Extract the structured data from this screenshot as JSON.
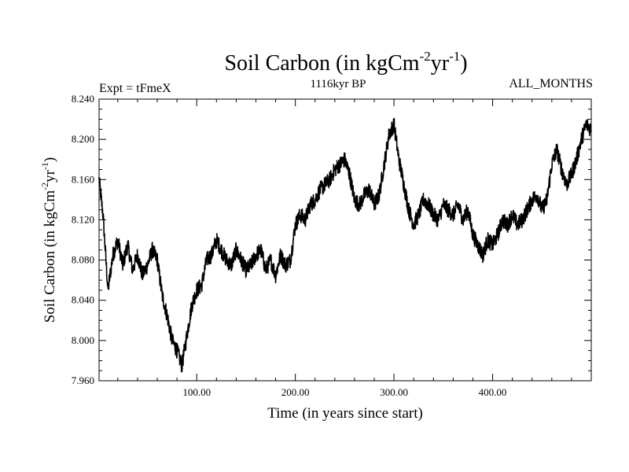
{
  "chart_data": {
    "type": "line",
    "title_main": "Soil Carbon (in kgCm",
    "title_sup1": "-2",
    "title_mid": "yr",
    "title_sup2": "-1",
    "title_end": ")",
    "left_label": "Expt = tFmeX",
    "center_label": "1116kyr BP",
    "right_label": "ALL_MONTHS",
    "xlabel": "Time (in years since start)",
    "ylabel_main": "Soil Carbon (in kgCm",
    "ylabel_sup1": "-2",
    "ylabel_mid": "yr",
    "ylabel_sup2": "-1",
    "ylabel_end": ")",
    "xlim": [
      1,
      500
    ],
    "ylim": [
      7.96,
      8.24
    ],
    "xticks": [
      100,
      200,
      300,
      400
    ],
    "xtick_labels": [
      "100.00",
      "200.00",
      "300.00",
      "400.00"
    ],
    "yticks": [
      7.96,
      8.0,
      8.04,
      8.08,
      8.12,
      8.16,
      8.2,
      8.24
    ],
    "ytick_labels": [
      "7.960",
      "8.000",
      "8.040",
      "8.080",
      "8.120",
      "8.160",
      "8.200",
      "8.240"
    ],
    "line_color": "#000000",
    "series": [
      {
        "name": "Soil Carbon",
        "x": [
          1,
          5,
          10,
          15,
          20,
          25,
          30,
          35,
          40,
          45,
          50,
          55,
          60,
          65,
          70,
          75,
          80,
          85,
          90,
          95,
          100,
          105,
          110,
          115,
          120,
          125,
          130,
          135,
          140,
          145,
          150,
          155,
          160,
          165,
          170,
          175,
          180,
          185,
          190,
          195,
          200,
          205,
          210,
          215,
          220,
          225,
          230,
          235,
          240,
          245,
          250,
          255,
          260,
          265,
          270,
          275,
          280,
          285,
          290,
          295,
          300,
          305,
          310,
          315,
          320,
          325,
          330,
          335,
          340,
          345,
          350,
          355,
          360,
          365,
          370,
          375,
          380,
          385,
          390,
          395,
          400,
          405,
          410,
          415,
          420,
          425,
          430,
          435,
          440,
          445,
          450,
          455,
          460,
          465,
          470,
          475,
          480,
          485,
          490,
          495,
          500
        ],
        "values": [
          8.16,
          8.125,
          8.05,
          8.085,
          8.1,
          8.075,
          8.095,
          8.07,
          8.085,
          8.065,
          8.075,
          8.09,
          8.08,
          8.045,
          8.025,
          8.0,
          7.99,
          7.975,
          8.005,
          8.035,
          8.05,
          8.055,
          8.08,
          8.085,
          8.1,
          8.09,
          8.08,
          8.075,
          8.09,
          8.08,
          8.07,
          8.075,
          8.085,
          8.09,
          8.07,
          8.08,
          8.065,
          8.085,
          8.075,
          8.08,
          8.115,
          8.125,
          8.12,
          8.135,
          8.14,
          8.15,
          8.155,
          8.16,
          8.17,
          8.175,
          8.18,
          8.165,
          8.14,
          8.135,
          8.145,
          8.15,
          8.135,
          8.145,
          8.175,
          8.205,
          8.215,
          8.18,
          8.155,
          8.13,
          8.115,
          8.125,
          8.14,
          8.135,
          8.125,
          8.12,
          8.135,
          8.13,
          8.125,
          8.135,
          8.12,
          8.13,
          8.105,
          8.095,
          8.085,
          8.1,
          8.095,
          8.105,
          8.12,
          8.115,
          8.125,
          8.115,
          8.12,
          8.13,
          8.14,
          8.145,
          8.13,
          8.14,
          8.175,
          8.19,
          8.17,
          8.155,
          8.165,
          8.18,
          8.2,
          8.215,
          8.21
        ]
      }
    ]
  }
}
